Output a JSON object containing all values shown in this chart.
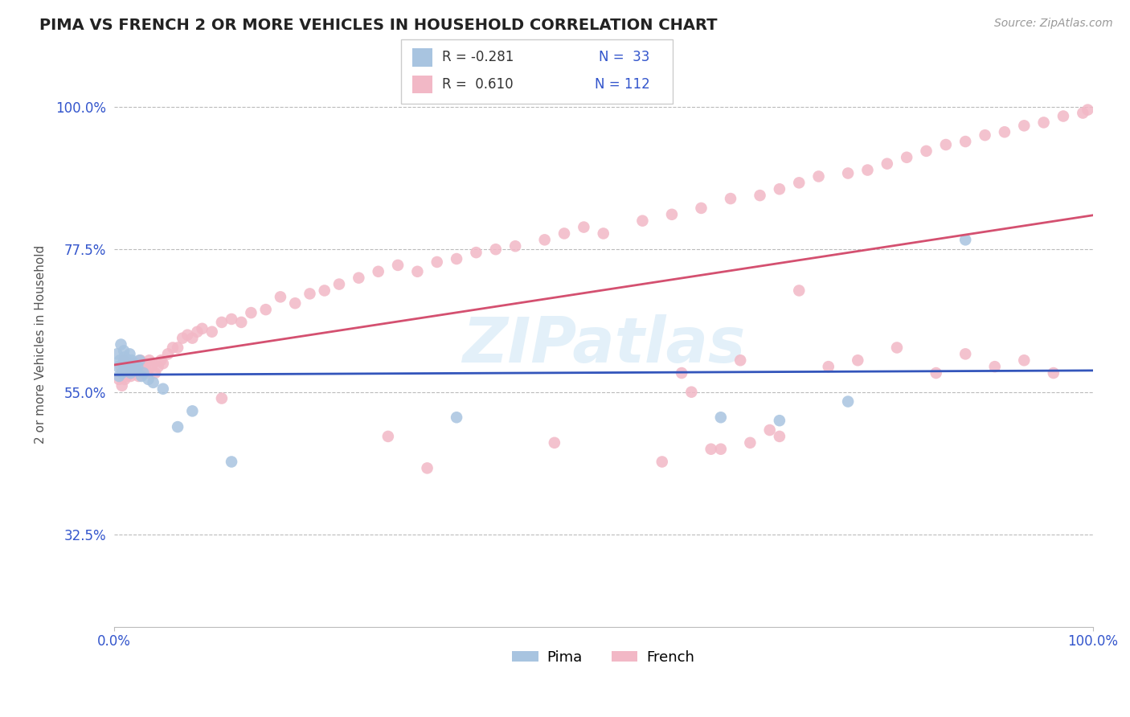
{
  "title": "PIMA VS FRENCH 2 OR MORE VEHICLES IN HOUSEHOLD CORRELATION CHART",
  "source_text": "Source: ZipAtlas.com",
  "ylabel": "2 or more Vehicles in Household",
  "xlim": [
    0.0,
    1.0
  ],
  "ylim": [
    0.18,
    1.07
  ],
  "y_tick_values": [
    0.325,
    0.55,
    0.775,
    1.0
  ],
  "pima_color": "#a8c4e0",
  "french_color": "#f2b8c6",
  "pima_line_color": "#3355bb",
  "french_line_color": "#d45070",
  "pima_R": -0.281,
  "pima_N": 33,
  "french_R": 0.61,
  "french_N": 112,
  "background_color": "#ffffff",
  "grid_color": "#bbbbbb",
  "pima_x": [
    0.003,
    0.004,
    0.005,
    0.006,
    0.007,
    0.008,
    0.009,
    0.01,
    0.011,
    0.012,
    0.013,
    0.014,
    0.015,
    0.016,
    0.017,
    0.018,
    0.02,
    0.022,
    0.024,
    0.026,
    0.028,
    0.03,
    0.035,
    0.04,
    0.05,
    0.065,
    0.08,
    0.12,
    0.35,
    0.62,
    0.68,
    0.75,
    0.87
  ],
  "pima_y": [
    0.61,
    0.59,
    0.575,
    0.6,
    0.625,
    0.58,
    0.595,
    0.615,
    0.605,
    0.585,
    0.6,
    0.595,
    0.59,
    0.61,
    0.58,
    0.6,
    0.595,
    0.585,
    0.59,
    0.6,
    0.575,
    0.58,
    0.57,
    0.565,
    0.555,
    0.495,
    0.52,
    0.44,
    0.51,
    0.51,
    0.505,
    0.535,
    0.79
  ],
  "french_x": [
    0.005,
    0.007,
    0.008,
    0.009,
    0.01,
    0.011,
    0.012,
    0.013,
    0.014,
    0.015,
    0.016,
    0.017,
    0.018,
    0.019,
    0.02,
    0.021,
    0.022,
    0.023,
    0.024,
    0.025,
    0.027,
    0.028,
    0.03,
    0.032,
    0.034,
    0.036,
    0.038,
    0.04,
    0.042,
    0.045,
    0.048,
    0.05,
    0.055,
    0.06,
    0.065,
    0.07,
    0.075,
    0.08,
    0.085,
    0.09,
    0.1,
    0.11,
    0.12,
    0.13,
    0.14,
    0.155,
    0.17,
    0.185,
    0.2,
    0.215,
    0.23,
    0.25,
    0.27,
    0.29,
    0.31,
    0.33,
    0.35,
    0.37,
    0.39,
    0.41,
    0.44,
    0.46,
    0.48,
    0.5,
    0.54,
    0.57,
    0.6,
    0.63,
    0.66,
    0.68,
    0.7,
    0.72,
    0.75,
    0.77,
    0.79,
    0.81,
    0.83,
    0.85,
    0.87,
    0.89,
    0.91,
    0.93,
    0.95,
    0.97,
    0.99,
    0.995,
    0.11,
    0.28,
    0.32,
    0.45,
    0.56,
    0.58,
    0.61,
    0.64,
    0.67,
    0.7,
    0.73,
    0.76,
    0.8,
    0.84,
    0.87,
    0.9,
    0.93,
    0.96,
    0.59,
    0.62,
    0.65,
    0.68
  ],
  "french_y": [
    0.57,
    0.59,
    0.56,
    0.58,
    0.6,
    0.57,
    0.59,
    0.575,
    0.585,
    0.58,
    0.595,
    0.575,
    0.59,
    0.58,
    0.585,
    0.595,
    0.58,
    0.59,
    0.585,
    0.575,
    0.6,
    0.585,
    0.595,
    0.59,
    0.58,
    0.6,
    0.59,
    0.595,
    0.58,
    0.59,
    0.6,
    0.595,
    0.61,
    0.62,
    0.62,
    0.635,
    0.64,
    0.635,
    0.645,
    0.65,
    0.645,
    0.66,
    0.665,
    0.66,
    0.675,
    0.68,
    0.7,
    0.69,
    0.705,
    0.71,
    0.72,
    0.73,
    0.74,
    0.75,
    0.74,
    0.755,
    0.76,
    0.77,
    0.775,
    0.78,
    0.79,
    0.8,
    0.81,
    0.8,
    0.82,
    0.83,
    0.84,
    0.855,
    0.86,
    0.87,
    0.88,
    0.89,
    0.895,
    0.9,
    0.91,
    0.92,
    0.93,
    0.94,
    0.945,
    0.955,
    0.96,
    0.97,
    0.975,
    0.985,
    0.99,
    0.995,
    0.54,
    0.48,
    0.43,
    0.47,
    0.44,
    0.58,
    0.46,
    0.6,
    0.49,
    0.71,
    0.59,
    0.6,
    0.62,
    0.58,
    0.61,
    0.59,
    0.6,
    0.58,
    0.55,
    0.46,
    0.47,
    0.48
  ]
}
